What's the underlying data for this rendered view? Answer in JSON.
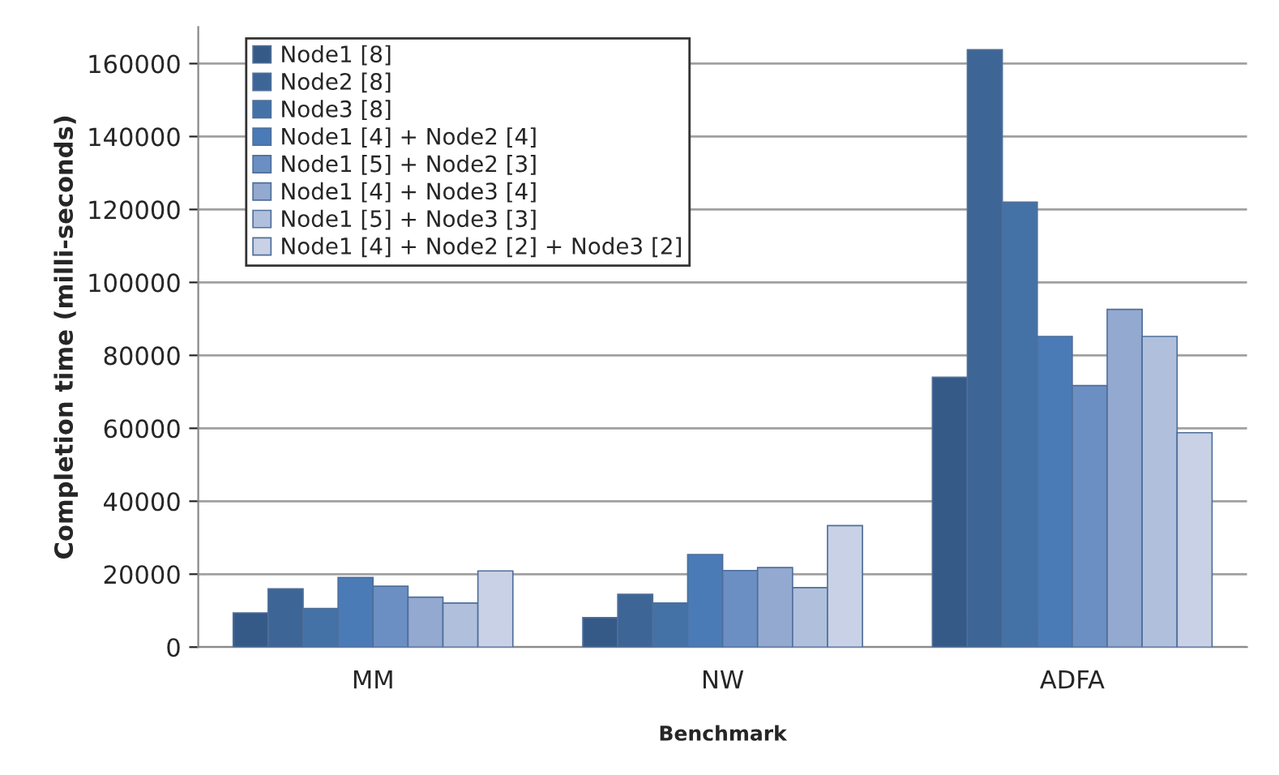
{
  "chart_data": {
    "type": "bar",
    "xlabel": "Benchmark",
    "ylabel": "Completion time (milli-seconds)",
    "categories": [
      "MM",
      "NW",
      "ADFA"
    ],
    "series": [
      {
        "name": "Node1 [8]",
        "color": "#365a88",
        "values": [
          9400,
          8100,
          74000
        ]
      },
      {
        "name": "Node2 [8]",
        "color": "#3d6595",
        "values": [
          16000,
          14500,
          163800
        ]
      },
      {
        "name": "Node3 [8]",
        "color": "#4472a6",
        "values": [
          10600,
          12100,
          122000
        ]
      },
      {
        "name": "Node1 [4] + Node2 [4]",
        "color": "#4a7bb7",
        "values": [
          19100,
          25400,
          85200
        ]
      },
      {
        "name": "Node1 [5] + Node2 [3]",
        "color": "#6b8fc3",
        "values": [
          16700,
          21000,
          71700
        ]
      },
      {
        "name": "Node1 [4] + Node3 [4]",
        "color": "#93a9d0",
        "values": [
          13700,
          21800,
          92600
        ]
      },
      {
        "name": "Node1 [5] + Node3 [3]",
        "color": "#b0c0dc",
        "values": [
          12100,
          16300,
          85200
        ]
      },
      {
        "name": "Node1 [4] + Node2 [2] + Node3 [2]",
        "color": "#c8d1e5",
        "values": [
          20900,
          33300,
          58800
        ]
      }
    ],
    "ylim": [
      0,
      170000
    ],
    "yticks": [
      0,
      20000,
      40000,
      60000,
      80000,
      100000,
      120000,
      140000,
      160000
    ],
    "grid": "y",
    "legend": "top left"
  }
}
